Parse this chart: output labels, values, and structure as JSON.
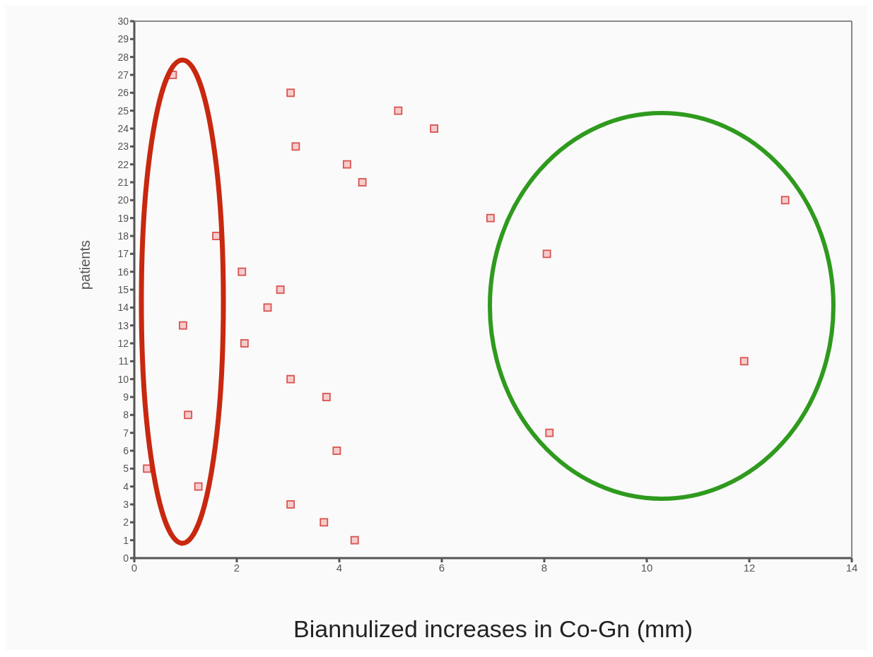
{
  "chart_data": {
    "type": "scatter",
    "xlabel": "Biannulized increases in Co-Gn  (mm)",
    "ylabel": "patients",
    "marker": "square",
    "xlim": [
      0,
      14
    ],
    "xticks": [
      0,
      2,
      4,
      6,
      8,
      10,
      12,
      14
    ],
    "ylim": [
      0,
      30
    ],
    "yticks": [
      0,
      1,
      2,
      3,
      4,
      5,
      6,
      7,
      8,
      9,
      10,
      11,
      12,
      13,
      14,
      15,
      16,
      17,
      18,
      19,
      20,
      21,
      22,
      23,
      24,
      25,
      26,
      27,
      28,
      29,
      30
    ],
    "series": [
      {
        "color": "#d9534f",
        "x": [
          4.3,
          3.7,
          3.05,
          1.25,
          0.25,
          3.95,
          8.1,
          1.05,
          3.75,
          3.05,
          11.9,
          2.15,
          0.95,
          2.6,
          2.85,
          2.1,
          8.05,
          1.6,
          6.95,
          12.7,
          4.45,
          4.15,
          3.15,
          5.85,
          5.15,
          3.05,
          0.75
        ],
        "values": [
          1,
          2,
          3,
          4,
          5,
          6,
          7,
          8,
          9,
          10,
          11,
          12,
          13,
          14,
          15,
          16,
          17,
          18,
          19,
          20,
          21,
          22,
          23,
          24,
          25,
          26,
          27
        ]
      }
    ]
  }
}
